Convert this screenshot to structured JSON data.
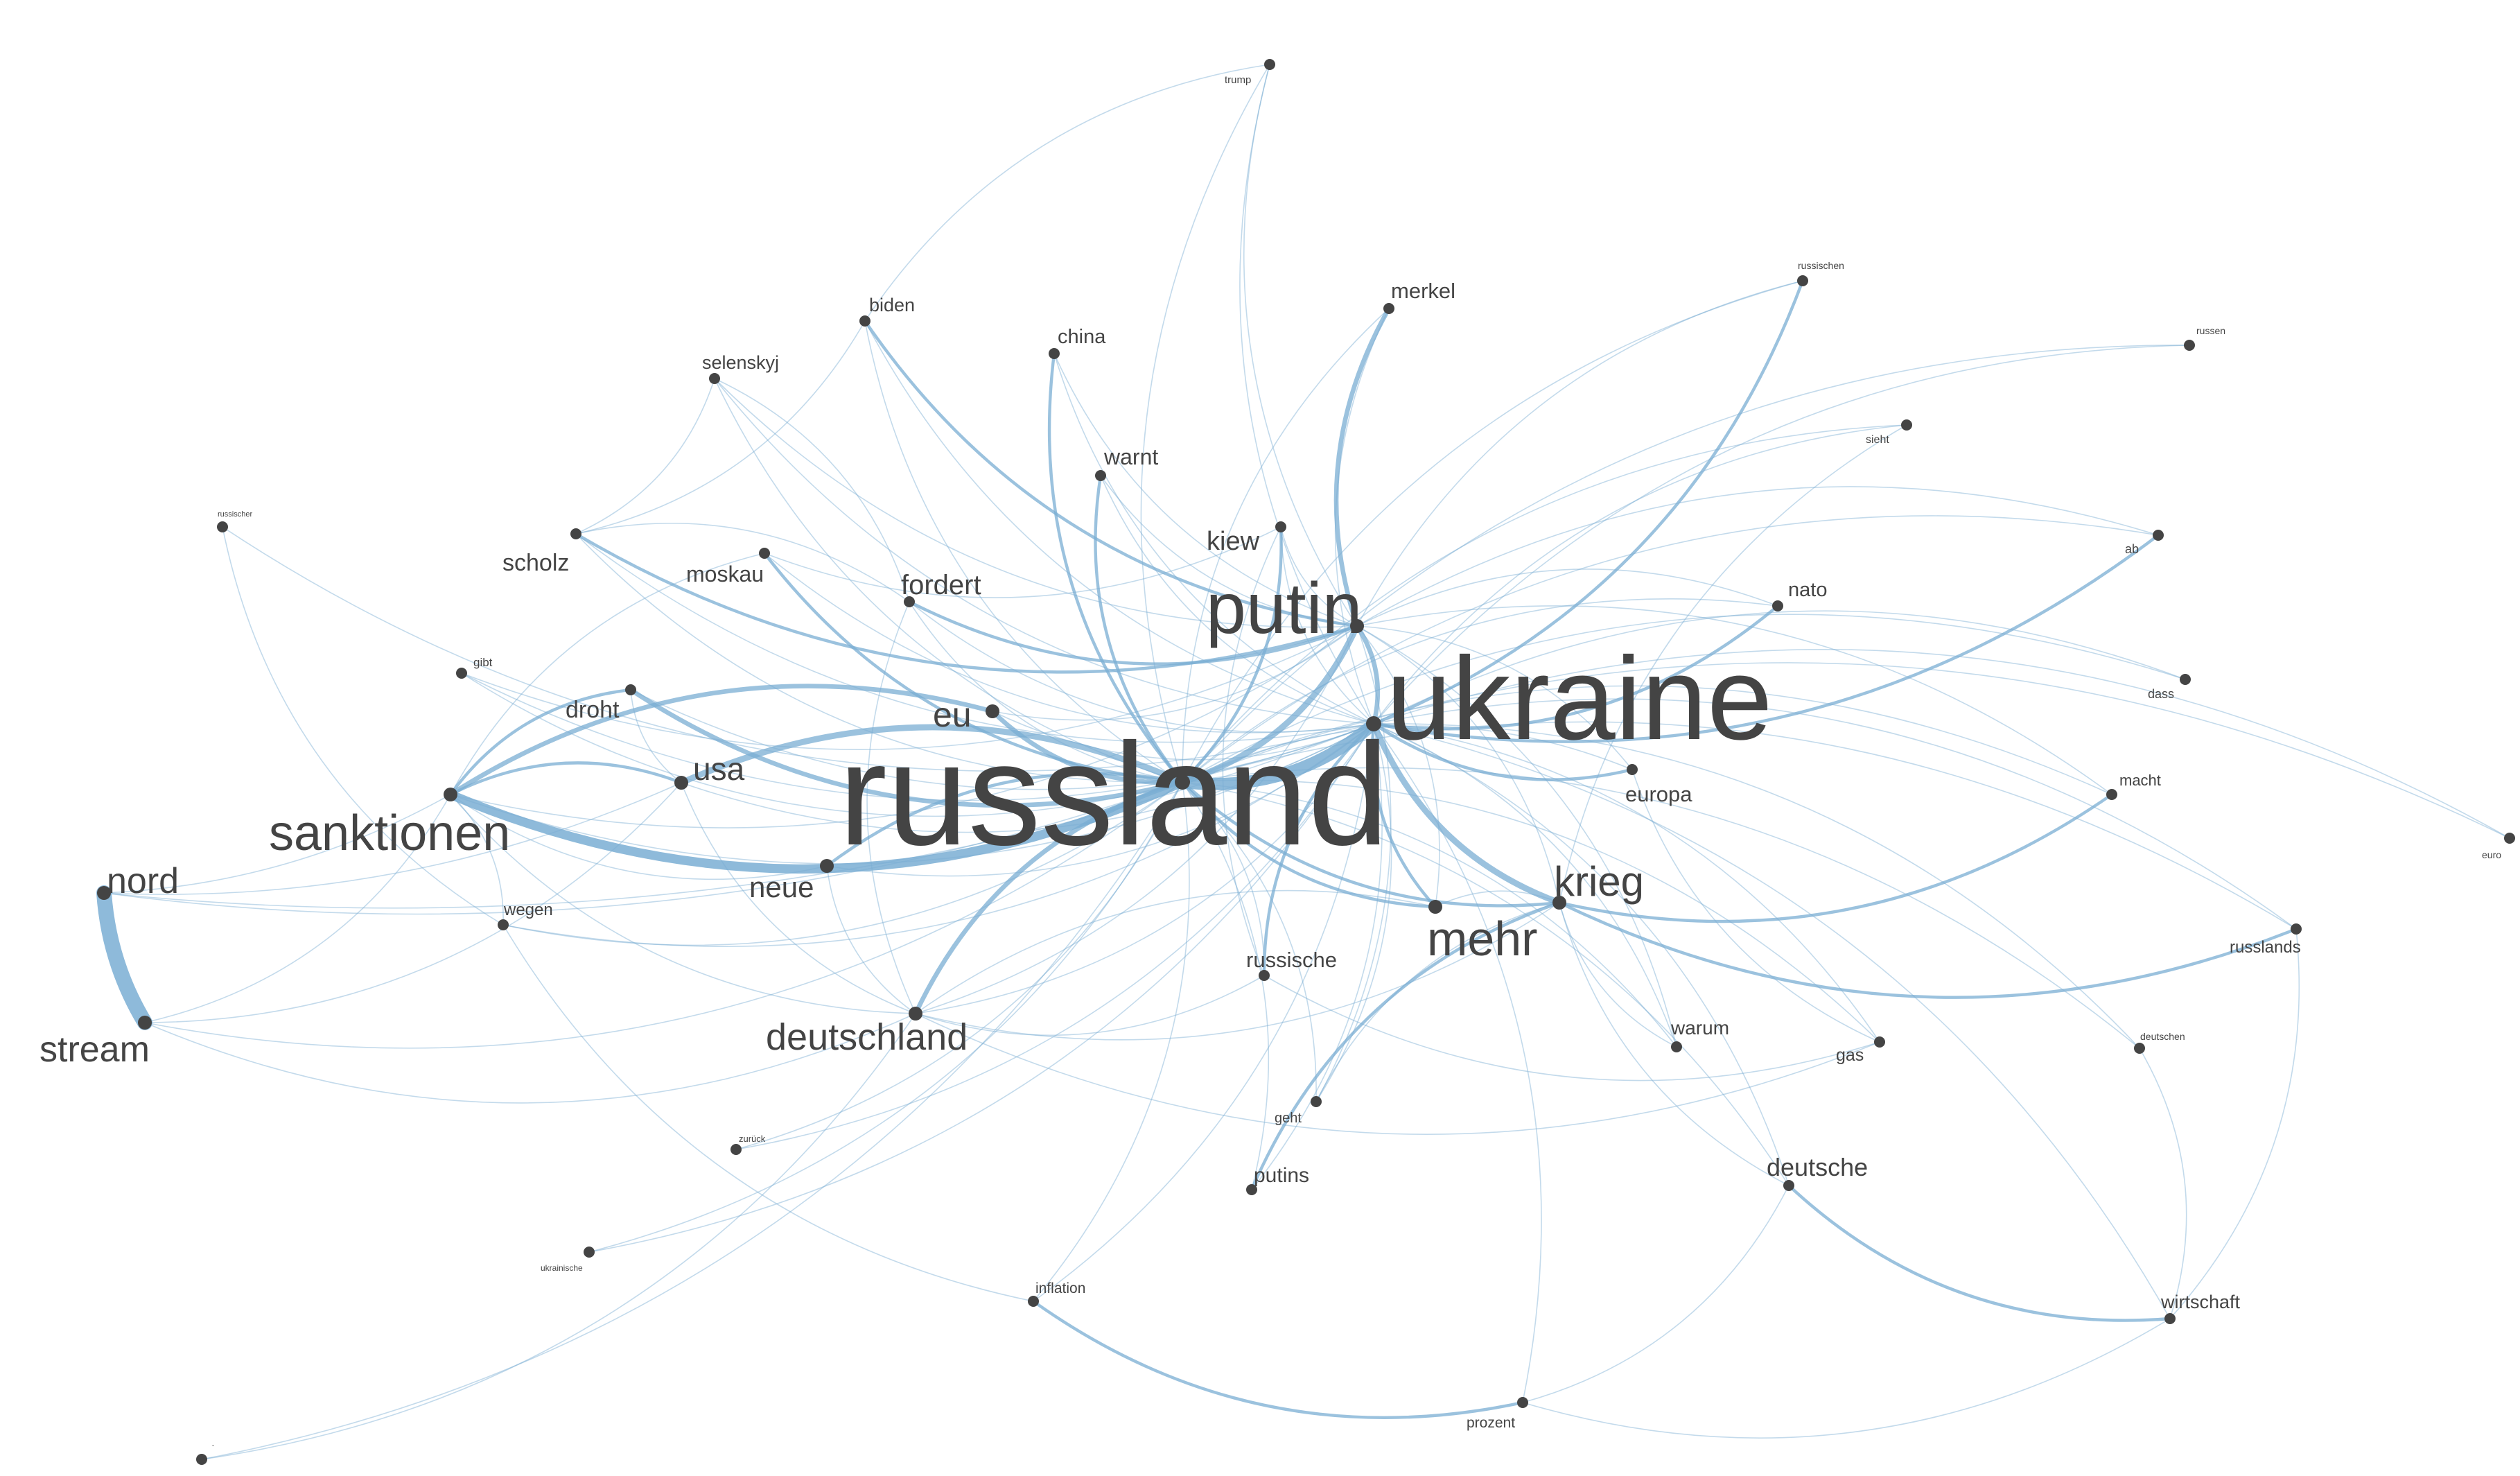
{
  "network": {
    "node_color": "#444444",
    "edge_color": "#7aaed3",
    "nodes": [
      {
        "id": "russland",
        "label": "russland",
        "weight": 100
      },
      {
        "id": "ukraine",
        "label": "ukraine",
        "weight": 85
      },
      {
        "id": "putin",
        "label": "putin",
        "weight": 45
      },
      {
        "id": "sanktionen",
        "label": "sanktionen",
        "weight": 30
      },
      {
        "id": "krieg",
        "label": "krieg",
        "weight": 28
      },
      {
        "id": "mehr",
        "label": "mehr",
        "weight": 28
      },
      {
        "id": "deutschland",
        "label": "deutschland",
        "weight": 24
      },
      {
        "id": "nord",
        "label": "nord",
        "weight": 24
      },
      {
        "id": "stream",
        "label": "stream",
        "weight": 24
      },
      {
        "id": "eu",
        "label": "eu",
        "weight": 24
      },
      {
        "id": "usa",
        "label": "usa",
        "weight": 22
      },
      {
        "id": "neue",
        "label": "neue",
        "weight": 20
      },
      {
        "id": "fordert",
        "label": "fordert",
        "weight": 18
      },
      {
        "id": "kiew",
        "label": "kiew",
        "weight": 18
      },
      {
        "id": "scholz",
        "label": "scholz",
        "weight": 17
      },
      {
        "id": "droht",
        "label": "droht",
        "weight": 17
      },
      {
        "id": "moskau",
        "label": "moskau",
        "weight": 16
      },
      {
        "id": "deutsche",
        "label": "deutsche",
        "weight": 16
      },
      {
        "id": "merkel",
        "label": "merkel",
        "weight": 15
      },
      {
        "id": "warnt",
        "label": "warnt",
        "weight": 15
      },
      {
        "id": "europa",
        "label": "europa",
        "weight": 15
      },
      {
        "id": "russische",
        "label": "russische",
        "weight": 15
      },
      {
        "id": "china",
        "label": "china",
        "weight": 14
      },
      {
        "id": "nato",
        "label": "nato",
        "weight": 14
      },
      {
        "id": "putins",
        "label": "putins",
        "weight": 14
      },
      {
        "id": "warum",
        "label": "warum",
        "weight": 14
      },
      {
        "id": "biden",
        "label": "biden",
        "weight": 13
      },
      {
        "id": "selenskyj",
        "label": "selenskyj",
        "weight": 13
      },
      {
        "id": "wirtschaft",
        "label": "wirtschaft",
        "weight": 13
      },
      {
        "id": "gas",
        "label": "gas",
        "weight": 12
      },
      {
        "id": "wegen",
        "label": "wegen",
        "weight": 11
      },
      {
        "id": "russlands",
        "label": "russlands",
        "weight": 11
      },
      {
        "id": "inflation",
        "label": "inflation",
        "weight": 10
      },
      {
        "id": "prozent",
        "label": "prozent",
        "weight": 10
      },
      {
        "id": "macht",
        "label": "macht",
        "weight": 10
      },
      {
        "id": "geht",
        "label": "geht",
        "weight": 10
      },
      {
        "id": "dass",
        "label": "dass",
        "weight": 9
      },
      {
        "id": "ab",
        "label": "ab",
        "weight": 9
      },
      {
        "id": "trump",
        "label": "trump",
        "weight": 8
      },
      {
        "id": "sieht",
        "label": "sieht",
        "weight": 8
      },
      {
        "id": "gibt",
        "label": "gibt",
        "weight": 8
      },
      {
        "id": "deutschen",
        "label": "deutschen",
        "weight": 7
      },
      {
        "id": "russischen",
        "label": "russischen",
        "weight": 7
      },
      {
        "id": "russen",
        "label": "russen",
        "weight": 7
      },
      {
        "id": "euro",
        "label": "euro",
        "weight": 6
      },
      {
        "id": "russischer",
        "label": "russischer",
        "weight": 5
      },
      {
        "id": "ukrainische",
        "label": "ukrainische",
        "weight": 5
      },
      {
        "id": "zurück",
        "label": "zurück",
        "weight": 5
      },
      {
        "id": "dot",
        "label": "·",
        "weight": 4
      }
    ],
    "edges": [
      {
        "source": "nord",
        "target": "stream",
        "weight": 10
      },
      {
        "source": "russland",
        "target": "ukraine",
        "weight": 8
      },
      {
        "source": "sanktionen",
        "target": "russland",
        "weight": 6
      },
      {
        "source": "russland",
        "target": "usa",
        "weight": 4
      },
      {
        "source": "ukraine",
        "target": "krieg",
        "weight": 4
      },
      {
        "source": "russland",
        "target": "putin",
        "weight": 4
      },
      {
        "source": "ukraine",
        "target": "putin",
        "weight": 3
      },
      {
        "source": "merkel",
        "target": "putin",
        "weight": 3
      },
      {
        "source": "eu",
        "target": "sanktionen",
        "weight": 3
      },
      {
        "source": "eu",
        "target": "russland",
        "weight": 3
      },
      {
        "source": "russland",
        "target": "deutschland",
        "weight": 3
      },
      {
        "source": "droht",
        "target": "russland",
        "weight": 3
      },
      {
        "source": "china",
        "target": "russland",
        "weight": 2
      },
      {
        "source": "biden",
        "target": "putin",
        "weight": 2
      },
      {
        "source": "deutsche",
        "target": "wirtschaft",
        "weight": 2
      },
      {
        "source": "inflation",
        "target": "prozent",
        "weight": 2
      },
      {
        "source": "krieg",
        "target": "putins",
        "weight": 2
      },
      {
        "source": "usa",
        "target": "sanktionen",
        "weight": 2
      },
      {
        "source": "droht",
        "target": "sanktionen",
        "weight": 2
      },
      {
        "source": "fordert",
        "target": "putin",
        "weight": 2
      },
      {
        "source": "warnt",
        "target": "russland",
        "weight": 2
      },
      {
        "source": "moskau",
        "target": "russland",
        "weight": 2
      },
      {
        "source": "scholz",
        "target": "putin",
        "weight": 2
      },
      {
        "source": "ukraine",
        "target": "mehr",
        "weight": 2
      },
      {
        "source": "ukraine",
        "target": "russische",
        "weight": 2
      },
      {
        "source": "ukraine",
        "target": "europa",
        "weight": 2
      },
      {
        "source": "ukraine",
        "target": "nato",
        "weight": 2
      },
      {
        "source": "ukraine",
        "target": "ab",
        "weight": 2
      },
      {
        "source": "ukraine",
        "target": "russischen",
        "weight": 2
      },
      {
        "source": "krieg",
        "target": "russlands",
        "weight": 2
      },
      {
        "source": "krieg",
        "target": "macht",
        "weight": 2
      },
      {
        "source": "russland",
        "target": "kiew",
        "weight": 2
      },
      {
        "source": "russland",
        "target": "neue",
        "weight": 2
      },
      {
        "source": "russland",
        "target": "mehr",
        "weight": 2
      },
      {
        "source": "russland",
        "target": "krieg",
        "weight": 2
      },
      {
        "source": "sanktionen",
        "target": "deutschland",
        "weight": 1
      },
      {
        "source": "selenskyj",
        "target": "putin",
        "weight": 1
      },
      {
        "source": "selenskyj",
        "target": "russland",
        "weight": 1
      },
      {
        "source": "selenskyj",
        "target": "ukraine",
        "weight": 1
      },
      {
        "source": "biden",
        "target": "russland",
        "weight": 1
      },
      {
        "source": "biden",
        "target": "ukraine",
        "weight": 1
      },
      {
        "source": "china",
        "target": "ukraine",
        "weight": 1
      },
      {
        "source": "china",
        "target": "putin",
        "weight": 1
      },
      {
        "source": "trump",
        "target": "putin",
        "weight": 1
      },
      {
        "source": "trump",
        "target": "russland",
        "weight": 1
      },
      {
        "source": "trump",
        "target": "biden",
        "weight": 1
      },
      {
        "source": "trump",
        "target": "ukraine",
        "weight": 1
      },
      {
        "source": "merkel",
        "target": "russland",
        "weight": 1
      },
      {
        "source": "merkel",
        "target": "ukraine",
        "weight": 1
      },
      {
        "source": "scholz",
        "target": "russland",
        "weight": 1
      },
      {
        "source": "scholz",
        "target": "ukraine",
        "weight": 1
      },
      {
        "source": "scholz",
        "target": "selenskyj",
        "weight": 1
      },
      {
        "source": "scholz",
        "target": "biden",
        "weight": 1
      },
      {
        "source": "moskau",
        "target": "ukraine",
        "weight": 1
      },
      {
        "source": "moskau",
        "target": "kiew",
        "weight": 1
      },
      {
        "source": "moskau",
        "target": "sanktionen",
        "weight": 1
      },
      {
        "source": "fordert",
        "target": "russland",
        "weight": 1
      },
      {
        "source": "fordert",
        "target": "ukraine",
        "weight": 1
      },
      {
        "source": "fordert",
        "target": "selenskyj",
        "weight": 1
      },
      {
        "source": "fordert",
        "target": "scholz",
        "weight": 1
      },
      {
        "source": "fordert",
        "target": "deutschland",
        "weight": 1
      },
      {
        "source": "warnt",
        "target": "ukraine",
        "weight": 1
      },
      {
        "source": "warnt",
        "target": "putin",
        "weight": 1
      },
      {
        "source": "kiew",
        "target": "ukraine",
        "weight": 1
      },
      {
        "source": "kiew",
        "target": "putin",
        "weight": 1
      },
      {
        "source": "droht",
        "target": "ukraine",
        "weight": 1
      },
      {
        "source": "droht",
        "target": "usa",
        "weight": 1
      },
      {
        "source": "gibt",
        "target": "russland",
        "weight": 1
      },
      {
        "source": "gibt",
        "target": "ukraine",
        "weight": 1
      },
      {
        "source": "gibt",
        "target": "putin",
        "weight": 1
      },
      {
        "source": "russischer",
        "target": "ukraine",
        "weight": 1
      },
      {
        "source": "russischer",
        "target": "wegen",
        "weight": 1
      },
      {
        "source": "eu",
        "target": "ukraine",
        "weight": 1
      },
      {
        "source": "eu",
        "target": "putin",
        "weight": 1
      },
      {
        "source": "usa",
        "target": "ukraine",
        "weight": 1
      },
      {
        "source": "usa",
        "target": "deutschland",
        "weight": 1
      },
      {
        "source": "sanktionen",
        "target": "ukraine",
        "weight": 1
      },
      {
        "source": "sanktionen",
        "target": "neue",
        "weight": 1
      },
      {
        "source": "sanktionen",
        "target": "putin",
        "weight": 1
      },
      {
        "source": "nord",
        "target": "russland",
        "weight": 1
      },
      {
        "source": "nord",
        "target": "ukraine",
        "weight": 1
      },
      {
        "source": "nord",
        "target": "usa",
        "weight": 1
      },
      {
        "source": "nord",
        "target": "sanktionen",
        "weight": 1
      },
      {
        "source": "stream",
        "target": "russland",
        "weight": 1
      },
      {
        "source": "stream",
        "target": "sanktionen",
        "weight": 1
      },
      {
        "source": "stream",
        "target": "usa",
        "weight": 1
      },
      {
        "source": "stream",
        "target": "deutschland",
        "weight": 1
      },
      {
        "source": "wegen",
        "target": "russland",
        "weight": 1
      },
      {
        "source": "wegen",
        "target": "ukraine",
        "weight": 1
      },
      {
        "source": "wegen",
        "target": "sanktionen",
        "weight": 1
      },
      {
        "source": "wegen",
        "target": "inflation",
        "weight": 1
      },
      {
        "source": "neue",
        "target": "ukraine",
        "weight": 1
      },
      {
        "source": "neue",
        "target": "deutschland",
        "weight": 1
      },
      {
        "source": "deutschland",
        "target": "ukraine",
        "weight": 1
      },
      {
        "source": "deutschland",
        "target": "putin",
        "weight": 1
      },
      {
        "source": "deutschland",
        "target": "gas",
        "weight": 1
      },
      {
        "source": "deutschland",
        "target": "krieg",
        "weight": 1
      },
      {
        "source": "deutschland",
        "target": "russische",
        "weight": 1
      },
      {
        "source": "zurück",
        "target": "russland",
        "weight": 1
      },
      {
        "source": "zurück",
        "target": "ukraine",
        "weight": 1
      },
      {
        "source": "ukrainische",
        "target": "russland",
        "weight": 1
      },
      {
        "source": "ukrainische",
        "target": "ukraine",
        "weight": 1
      },
      {
        "source": "russische",
        "target": "russland",
        "weight": 1
      },
      {
        "source": "russische",
        "target": "gas",
        "weight": 1
      },
      {
        "source": "geht",
        "target": "russland",
        "weight": 1
      },
      {
        "source": "geht",
        "target": "ukraine",
        "weight": 1
      },
      {
        "source": "geht",
        "target": "putin",
        "weight": 1
      },
      {
        "source": "putins",
        "target": "russland",
        "weight": 1
      },
      {
        "source": "putins",
        "target": "ukraine",
        "weight": 1
      },
      {
        "source": "inflation",
        "target": "ukraine",
        "weight": 1
      },
      {
        "source": "inflation",
        "target": "russland",
        "weight": 1
      },
      {
        "source": "prozent",
        "target": "deutsche",
        "weight": 1
      },
      {
        "source": "prozent",
        "target": "ukraine",
        "weight": 1
      },
      {
        "source": "prozent",
        "target": "wirtschaft",
        "weight": 1
      },
      {
        "source": "wirtschaft",
        "target": "ukraine",
        "weight": 1
      },
      {
        "source": "wirtschaft",
        "target": "russlands",
        "weight": 1
      },
      {
        "source": "wirtschaft",
        "target": "deutschen",
        "weight": 1
      },
      {
        "source": "deutsche",
        "target": "ukraine",
        "weight": 1
      },
      {
        "source": "deutsche",
        "target": "russland",
        "weight": 1
      },
      {
        "source": "warum",
        "target": "ukraine",
        "weight": 1
      },
      {
        "source": "warum",
        "target": "russland",
        "weight": 1
      },
      {
        "source": "warum",
        "target": "putin",
        "weight": 1
      },
      {
        "source": "gas",
        "target": "ukraine",
        "weight": 1
      },
      {
        "source": "gas",
        "target": "russland",
        "weight": 1
      },
      {
        "source": "deutschen",
        "target": "ukraine",
        "weight": 1
      },
      {
        "source": "deutschen",
        "target": "russland",
        "weight": 1
      },
      {
        "source": "russlands",
        "target": "ukraine",
        "weight": 1
      },
      {
        "source": "russlands",
        "target": "russland",
        "weight": 1
      },
      {
        "source": "macht",
        "target": "russland",
        "weight": 1
      },
      {
        "source": "macht",
        "target": "putin",
        "weight": 1
      },
      {
        "source": "dass",
        "target": "ukraine",
        "weight": 1
      },
      {
        "source": "dass",
        "target": "russland",
        "weight": 1
      },
      {
        "source": "euro",
        "target": "ukraine",
        "weight": 1
      },
      {
        "source": "euro",
        "target": "russland",
        "weight": 1
      },
      {
        "source": "ab",
        "target": "russland",
        "weight": 1
      },
      {
        "source": "ab",
        "target": "putin",
        "weight": 1
      },
      {
        "source": "sieht",
        "target": "ukraine",
        "weight": 1
      },
      {
        "source": "sieht",
        "target": "russland",
        "weight": 1
      },
      {
        "source": "sieht",
        "target": "krieg",
        "weight": 1
      },
      {
        "source": "russen",
        "target": "ukraine",
        "weight": 1
      },
      {
        "source": "russen",
        "target": "russland",
        "weight": 1
      },
      {
        "source": "russischen",
        "target": "russland",
        "weight": 1
      },
      {
        "source": "russischen",
        "target": "putin",
        "weight": 1
      },
      {
        "source": "nato",
        "target": "russland",
        "weight": 1
      },
      {
        "source": "nato",
        "target": "putin",
        "weight": 1
      },
      {
        "source": "europa",
        "target": "russland",
        "weight": 1
      },
      {
        "source": "europa",
        "target": "putin",
        "weight": 1
      },
      {
        "source": "europa",
        "target": "gas",
        "weight": 1
      },
      {
        "source": "mehr",
        "target": "putin",
        "weight": 1
      },
      {
        "source": "mehr",
        "target": "deutschland",
        "weight": 1
      },
      {
        "source": "krieg",
        "target": "putin",
        "weight": 1
      },
      {
        "source": "krieg",
        "target": "mehr",
        "weight": 1
      },
      {
        "source": "krieg",
        "target": "deutsche",
        "weight": 1
      },
      {
        "source": "krieg",
        "target": "warum",
        "weight": 1
      },
      {
        "source": "krieg",
        "target": "geht",
        "weight": 1
      },
      {
        "source": "kiew",
        "target": "russische",
        "weight": 1
      },
      {
        "source": "dot",
        "target": "russland",
        "weight": 1
      },
      {
        "source": "dot",
        "target": "deutschland",
        "weight": 1
      }
    ]
  }
}
